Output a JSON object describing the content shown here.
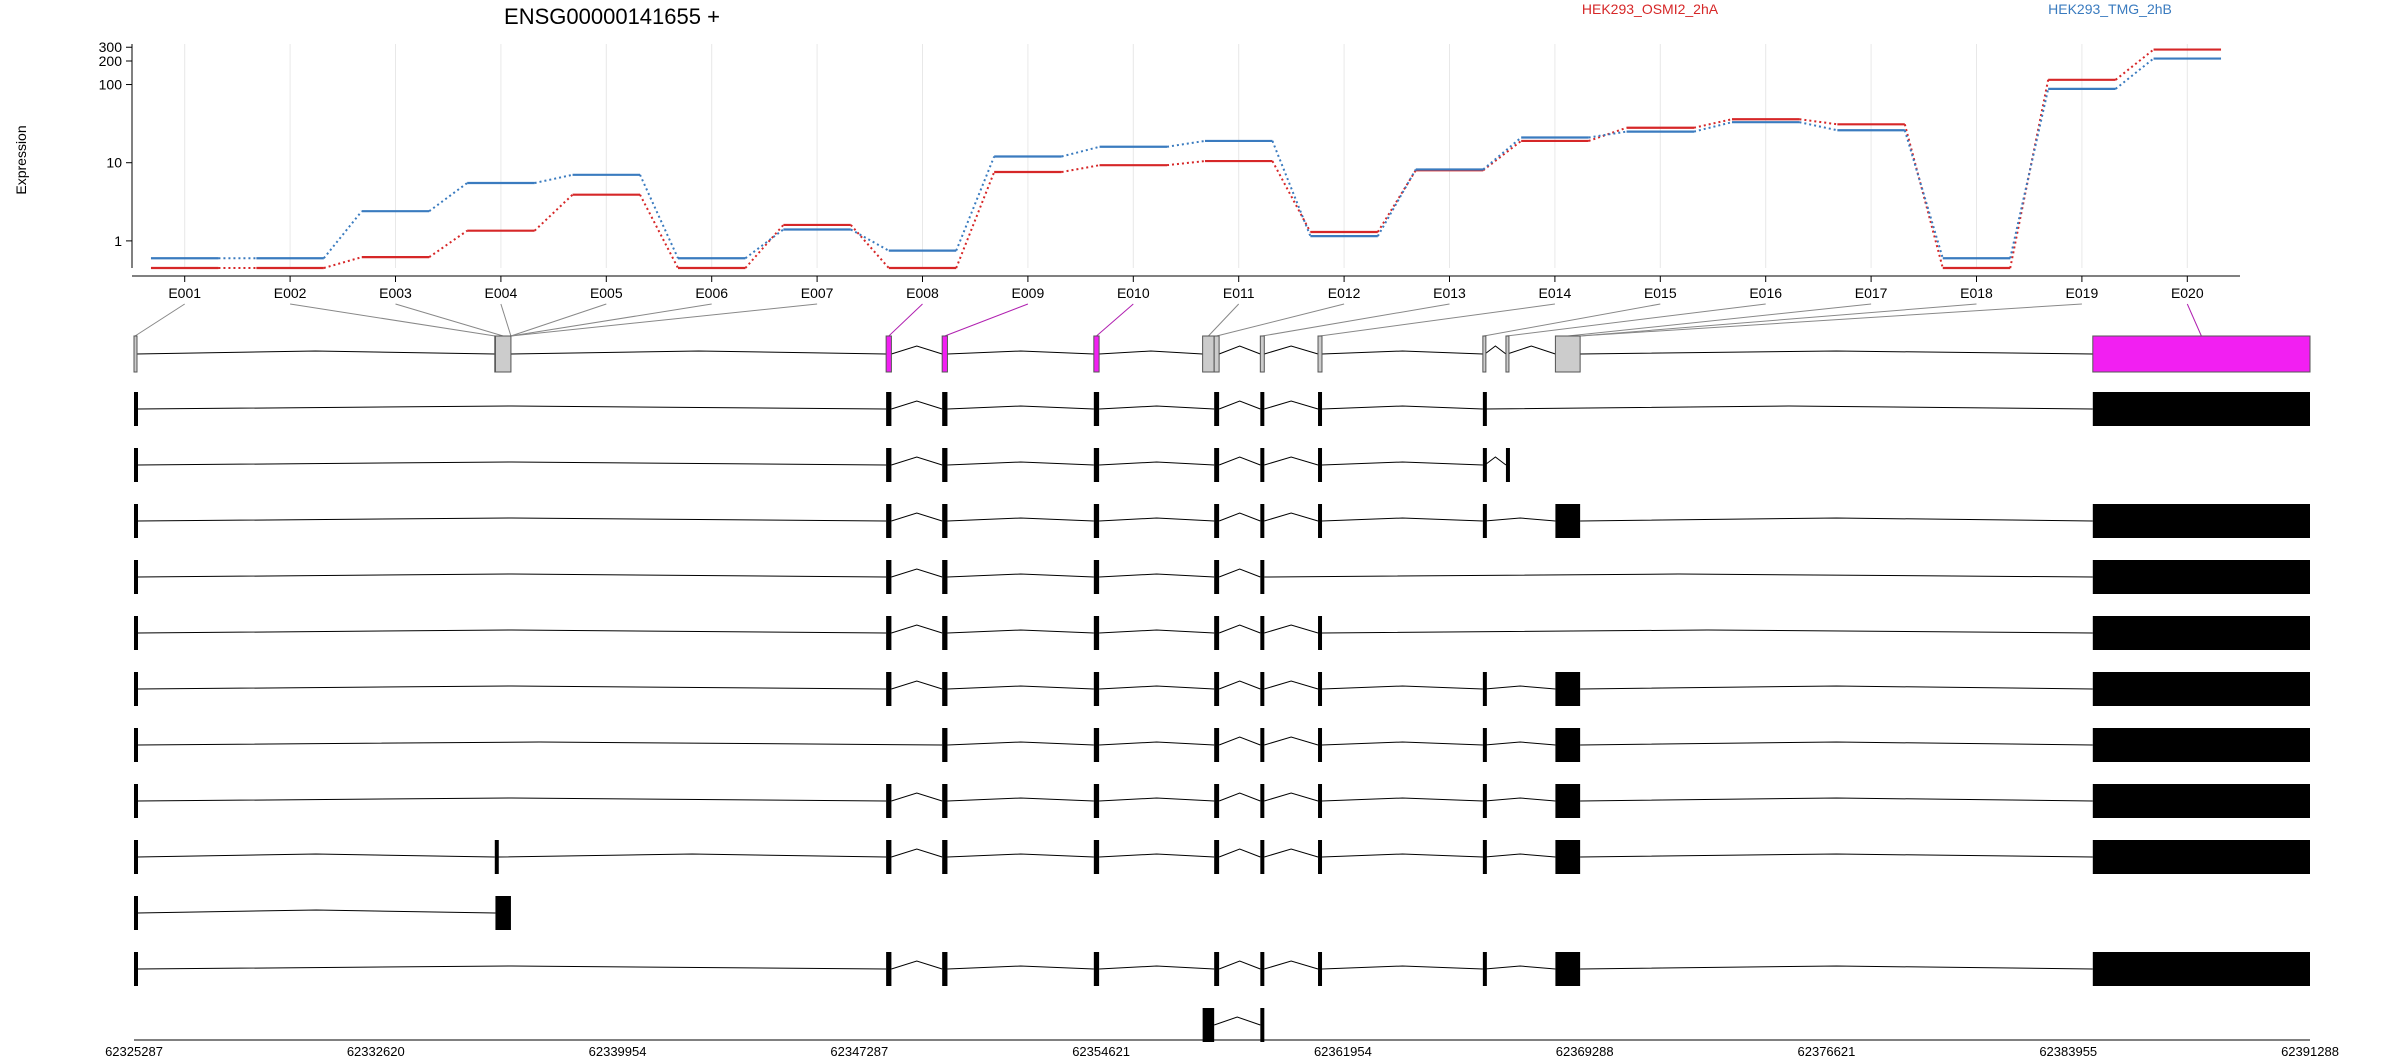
{
  "title": "ENSG00000141655 +",
  "legend": [
    {
      "label": "HEK293_OSMI2_2hA",
      "color": "#d62728"
    },
    {
      "label": "HEK293_TMG_2hB",
      "color": "#3a7bbf"
    }
  ],
  "colors": {
    "significant_exon": "#f21ff2",
    "normal_exon": "#cccccc",
    "transcript_exon": "#000000",
    "grid": "#e8e8e8"
  },
  "chart_data": {
    "type": "line",
    "ylabel": "Expression",
    "y_scale": "log",
    "yticks": [
      1,
      10,
      100,
      200,
      300
    ],
    "ylim": [
      0.45,
      330
    ],
    "exons": [
      "E001",
      "E002",
      "E003",
      "E004",
      "E005",
      "E006",
      "E007",
      "E008",
      "E009",
      "E010",
      "E011",
      "E012",
      "E013",
      "E014",
      "E015",
      "E016",
      "E017",
      "E018",
      "E019",
      "E020"
    ],
    "series": [
      {
        "name": "HEK293_OSMI2_2hA",
        "color": "#d62728",
        "values": [
          0.45,
          0.45,
          0.62,
          1.35,
          3.9,
          0.45,
          1.6,
          0.45,
          7.6,
          9.3,
          10.5,
          1.3,
          8.0,
          19.0,
          28.0,
          36.0,
          31.0,
          0.45,
          115,
          280
        ]
      },
      {
        "name": "HEK293_TMG_2hB",
        "color": "#3a7bbf",
        "values": [
          0.6,
          0.6,
          2.4,
          5.5,
          7.0,
          0.6,
          1.4,
          0.75,
          12.0,
          16.0,
          19.0,
          1.15,
          8.2,
          21.0,
          25.0,
          33.0,
          26.0,
          0.6,
          88,
          215
        ]
      }
    ],
    "genomic_range": [
      62325287,
      62391288
    ],
    "genomic_ticks": [
      "62325287",
      "62332620",
      "62339954",
      "62347287",
      "62354621",
      "62361954",
      "62369288",
      "62376621",
      "62383955",
      "62391288"
    ],
    "exon_blocks": [
      {
        "start": 62325287,
        "end": 62325350,
        "mapped": "E001",
        "significant": false
      },
      {
        "start": 62336230,
        "end": 62336250,
        "mapped": "E002",
        "significant": false
      },
      {
        "start": 62336250,
        "end": 62336720,
        "mapped": "E003",
        "significant": false
      },
      {
        "start": 62348100,
        "end": 62348260,
        "mapped": "E008",
        "significant": true
      },
      {
        "start": 62349800,
        "end": 62349960,
        "mapped": "E009",
        "significant": true
      },
      {
        "start": 62354400,
        "end": 62354560,
        "mapped": "E010",
        "significant": true
      },
      {
        "start": 62357700,
        "end": 62358050,
        "mapped": "E011",
        "significant": false
      },
      {
        "start": 62358050,
        "end": 62358200,
        "mapped": "E012",
        "significant": false
      },
      {
        "start": 62359450,
        "end": 62359570,
        "mapped": "E013",
        "significant": false
      },
      {
        "start": 62361200,
        "end": 62361320,
        "mapped": "E014",
        "significant": false
      },
      {
        "start": 62366200,
        "end": 62366260,
        "mapped": "E015",
        "significant": false
      },
      {
        "start": 62366900,
        "end": 62366940,
        "mapped": "E016",
        "significant": false
      },
      {
        "start": 62368400,
        "end": 62369150,
        "mapped": "E017",
        "significant": false
      },
      {
        "start": 62384700,
        "end": 62391288,
        "mapped": "E020",
        "significant": true
      }
    ],
    "transcripts": [
      [
        [
          62325287,
          62325380
        ],
        [
          62348100,
          62348260
        ],
        [
          62349800,
          62349960
        ],
        [
          62354400,
          62354560
        ],
        [
          62358050,
          62358200
        ],
        [
          62359450,
          62359570
        ],
        [
          62361200,
          62361320
        ],
        [
          62366200,
          62366260
        ],
        [
          62384700,
          62391288
        ]
      ],
      [
        [
          62325287,
          62325380
        ],
        [
          62348100,
          62348260
        ],
        [
          62349800,
          62349960
        ],
        [
          62354400,
          62354560
        ],
        [
          62358050,
          62358200
        ],
        [
          62359450,
          62359570
        ],
        [
          62361200,
          62361320
        ],
        [
          62366200,
          62366260
        ],
        [
          62366900,
          62366940
        ]
      ],
      [
        [
          62325287,
          62325380
        ],
        [
          62348100,
          62348260
        ],
        [
          62349800,
          62349960
        ],
        [
          62354400,
          62354560
        ],
        [
          62358050,
          62358200
        ],
        [
          62359450,
          62359570
        ],
        [
          62361200,
          62361320
        ],
        [
          62366200,
          62366260
        ],
        [
          62368400,
          62369150
        ],
        [
          62384700,
          62391288
        ]
      ],
      [
        [
          62325287,
          62325380
        ],
        [
          62348100,
          62348260
        ],
        [
          62349800,
          62349960
        ],
        [
          62354400,
          62354560
        ],
        [
          62358050,
          62358200
        ],
        [
          62359450,
          62359570
        ],
        [
          62384700,
          62391288
        ]
      ],
      [
        [
          62325287,
          62325380
        ],
        [
          62348100,
          62348260
        ],
        [
          62349800,
          62349960
        ],
        [
          62354400,
          62354560
        ],
        [
          62358050,
          62358200
        ],
        [
          62359450,
          62359570
        ],
        [
          62361200,
          62361320
        ],
        [
          62384700,
          62391288
        ]
      ],
      [
        [
          62325287,
          62325380
        ],
        [
          62348100,
          62348260
        ],
        [
          62349800,
          62349960
        ],
        [
          62354400,
          62354560
        ],
        [
          62358050,
          62358200
        ],
        [
          62359450,
          62359570
        ],
        [
          62361200,
          62361320
        ],
        [
          62366200,
          62366260
        ],
        [
          62368400,
          62369150
        ],
        [
          62384700,
          62391288
        ]
      ],
      [
        [
          62325287,
          62325380
        ],
        [
          62349800,
          62349960
        ],
        [
          62354400,
          62354560
        ],
        [
          62358050,
          62358200
        ],
        [
          62359450,
          62359570
        ],
        [
          62361200,
          62361320
        ],
        [
          62366200,
          62366260
        ],
        [
          62368400,
          62369150
        ],
        [
          62384700,
          62391288
        ]
      ],
      [
        [
          62325287,
          62325380
        ],
        [
          62348100,
          62348260
        ],
        [
          62349800,
          62349960
        ],
        [
          62354400,
          62354560
        ],
        [
          62358050,
          62358200
        ],
        [
          62359450,
          62359570
        ],
        [
          62361200,
          62361320
        ],
        [
          62366200,
          62366260
        ],
        [
          62368400,
          62369150
        ],
        [
          62384700,
          62391288
        ]
      ],
      [
        [
          62325287,
          62325380
        ],
        [
          62336230,
          62336330
        ],
        [
          62348100,
          62348260
        ],
        [
          62349800,
          62349960
        ],
        [
          62354400,
          62354560
        ],
        [
          62358050,
          62358200
        ],
        [
          62359450,
          62359570
        ],
        [
          62361200,
          62361320
        ],
        [
          62366200,
          62366260
        ],
        [
          62368400,
          62369150
        ],
        [
          62384700,
          62391288
        ]
      ],
      [
        [
          62325287,
          62325380
        ],
        [
          62336250,
          62336720
        ]
      ],
      [
        [
          62325287,
          62325380
        ],
        [
          62348100,
          62348260
        ],
        [
          62349800,
          62349960
        ],
        [
          62354400,
          62354560
        ],
        [
          62358050,
          62358200
        ],
        [
          62359450,
          62359570
        ],
        [
          62361200,
          62361320
        ],
        [
          62366200,
          62366260
        ],
        [
          62368400,
          62369150
        ],
        [
          62384700,
          62391288
        ]
      ],
      [
        [
          62357700,
          62358050
        ],
        [
          62359450,
          62359570
        ]
      ]
    ]
  }
}
